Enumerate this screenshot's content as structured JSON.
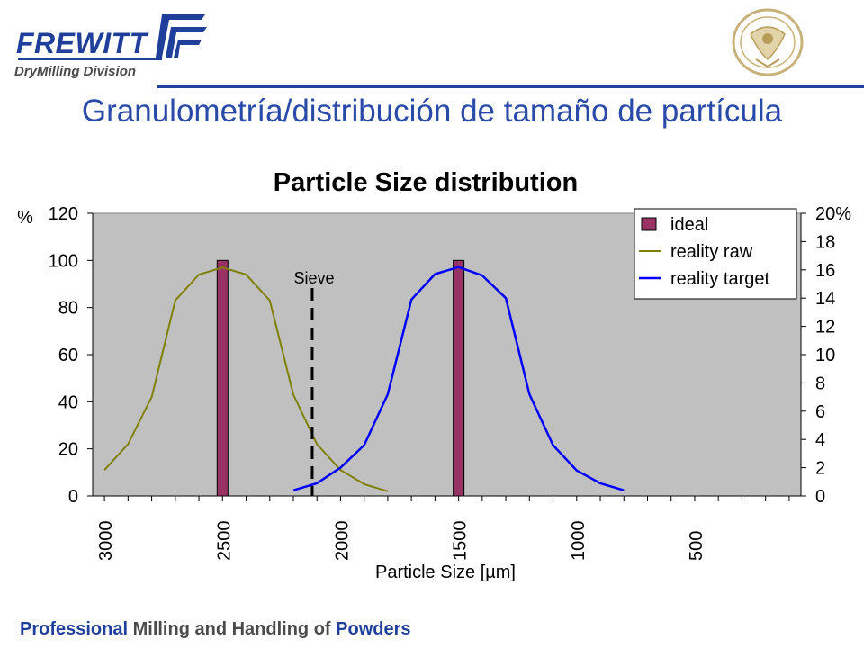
{
  "header": {
    "logo_text": "FREWITT",
    "logo_subtext": "DryMilling Division",
    "title": "Granulometría/distribución de tamaño de partícula"
  },
  "footer": {
    "part1": "Professional",
    "part2": " Milling and Handling of ",
    "part3": "Powders"
  },
  "colors": {
    "brand": "#1f3f9a",
    "title": "#2a4aa8",
    "plot_background": "#c0c0c0",
    "ideal": "#993366",
    "reality_raw": "#808000",
    "reality_target": "#0000ff"
  },
  "chart_data": {
    "type": "bar",
    "title": "Particle Size distribution",
    "xlabel": "Particle Size [µm]",
    "ylabel_left": "%",
    "ylabel_right": "",
    "xlim": [
      3050,
      50
    ],
    "x_tick_labels": [
      "3000",
      "2500",
      "2000",
      "1500",
      "1000",
      "500"
    ],
    "ylim_left": [
      0,
      120
    ],
    "y_ticks_left": [
      "0",
      "20",
      "40",
      "60",
      "80",
      "100",
      "120"
    ],
    "ylim_right": [
      0,
      20
    ],
    "y_ticks_right": [
      "0",
      "2",
      "4",
      "6",
      "8",
      "10",
      "12",
      "14",
      "16",
      "18",
      "20%"
    ],
    "annotation": {
      "text": "Sieve",
      "x": 2120
    },
    "legend_position": "top-right",
    "series": [
      {
        "name": "ideal",
        "type": "bar",
        "axis": "left",
        "x": [
          2500,
          1500
        ],
        "values": [
          100,
          100
        ]
      },
      {
        "name": "reality raw",
        "type": "line",
        "axis": "left",
        "x": [
          3000,
          2900,
          2800,
          2700,
          2600,
          2500,
          2400,
          2300,
          2200,
          2100,
          2000,
          1900,
          1800
        ],
        "values": [
          11,
          22,
          42,
          83,
          94,
          97,
          94,
          83,
          43,
          22,
          11,
          5,
          2
        ]
      },
      {
        "name": "reality target",
        "type": "line",
        "axis": "right",
        "x": [
          2200,
          2100,
          2000,
          1900,
          1800,
          1700,
          1600,
          1500,
          1400,
          1300,
          1200,
          1100,
          1000,
          900,
          800
        ],
        "values": [
          0.4,
          0.9,
          2,
          3.6,
          7.2,
          13.9,
          15.7,
          16.2,
          15.6,
          14,
          7.2,
          3.6,
          1.8,
          0.9,
          0.4
        ]
      }
    ]
  }
}
